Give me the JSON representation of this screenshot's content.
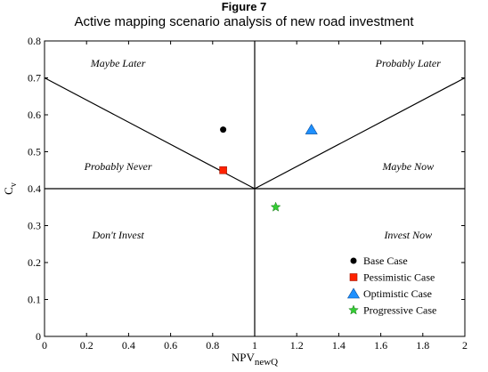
{
  "figure_label": "Figure 7",
  "chart_data": {
    "type": "scatter",
    "title": "Active mapping scenario analysis of new road investment",
    "xlabel": "NPV",
    "xlabel_sub": "newQ",
    "ylabel": "C",
    "ylabel_sub": "v",
    "xlim": [
      0,
      2
    ],
    "ylim": [
      0,
      0.8
    ],
    "xticks": [
      "0",
      "0.2",
      "0.4",
      "0.6",
      "0.8",
      "1",
      "1.2",
      "1.4",
      "1.6",
      "1.8",
      "2"
    ],
    "yticks": [
      "0",
      "0.1",
      "0.2",
      "0.3",
      "0.4",
      "0.5",
      "0.6",
      "0.7",
      "0.8"
    ],
    "grid": false,
    "legend_position": "lower-right",
    "boundary_lines": [
      {
        "x": [
          0,
          1
        ],
        "y": [
          0.7,
          0.4
        ]
      },
      {
        "x": [
          1,
          2
        ],
        "y": [
          0.4,
          0.7
        ]
      },
      {
        "x": [
          0,
          2
        ],
        "y": [
          0.4,
          0.4
        ]
      },
      {
        "x": [
          1,
          1
        ],
        "y": [
          0,
          0.8
        ]
      }
    ],
    "zones": [
      {
        "label": "Maybe Later",
        "x": 0.35,
        "y": 0.74
      },
      {
        "label": "Probably Later",
        "x": 1.73,
        "y": 0.74
      },
      {
        "label": "Probably Never",
        "x": 0.35,
        "y": 0.46
      },
      {
        "label": "Maybe Now",
        "x": 1.73,
        "y": 0.46
      },
      {
        "label": "Don't Invest",
        "x": 0.35,
        "y": 0.275
      },
      {
        "label": "Invest Now",
        "x": 1.73,
        "y": 0.275
      }
    ],
    "series": [
      {
        "name": "Base Case",
        "marker": "circle",
        "color": "#000000",
        "x": [
          0.85
        ],
        "y": [
          0.56
        ]
      },
      {
        "name": "Pessimistic Case",
        "marker": "square",
        "color": "#ff2200",
        "x": [
          0.85
        ],
        "y": [
          0.45
        ]
      },
      {
        "name": "Optimistic Case",
        "marker": "triangle",
        "color": "#1e90ff",
        "x": [
          1.27
        ],
        "y": [
          0.56
        ]
      },
      {
        "name": "Progressive Case",
        "marker": "star",
        "color": "#33cc33",
        "x": [
          1.1
        ],
        "y": [
          0.35
        ]
      }
    ]
  }
}
